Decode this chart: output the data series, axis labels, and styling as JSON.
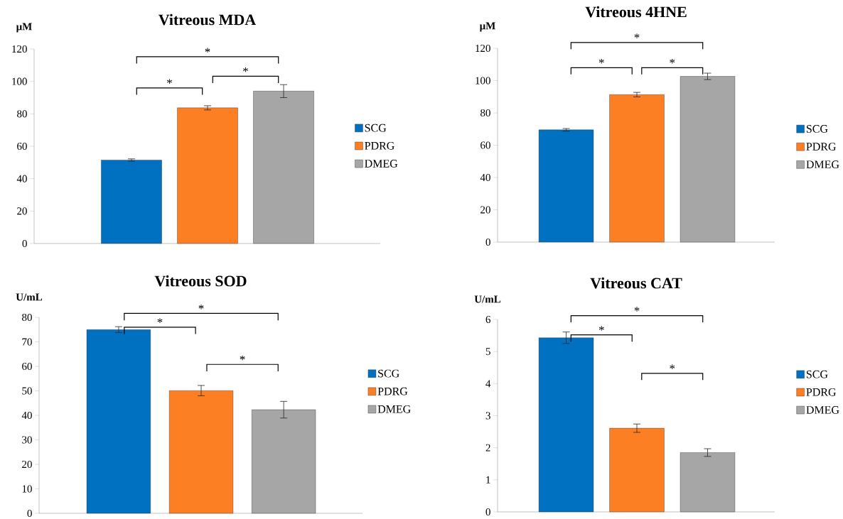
{
  "chart_data": [
    {
      "type": "bar",
      "title": "Vitreous MDA",
      "ylabel": "μM",
      "categories": [
        null
      ],
      "ylim": [
        0,
        120
      ],
      "yticks": [
        0,
        20,
        40,
        60,
        80,
        100,
        120
      ],
      "legend": "right",
      "annotations": [
        "*",
        "*",
        "*"
      ],
      "series": [
        {
          "name": "SCG",
          "color": "#0070c0",
          "values": [
            51.5
          ],
          "errors": [
            0.7
          ]
        },
        {
          "name": "PDRG",
          "color": "#fd7f23",
          "values": [
            83.7
          ],
          "errors": [
            1.3
          ]
        },
        {
          "name": "DMEG",
          "color": "#a6a6a6",
          "values": [
            94
          ],
          "errors": [
            4
          ]
        }
      ]
    },
    {
      "type": "bar",
      "title": "Vitreous 4HNE",
      "ylabel": "μM",
      "categories": [
        null
      ],
      "ylim": [
        0,
        120
      ],
      "yticks": [
        0,
        20,
        40,
        60,
        80,
        100,
        120
      ],
      "legend": "right",
      "annotations": [
        "*",
        "*",
        "*"
      ],
      "series": [
        {
          "name": "SCG",
          "color": "#0070c0",
          "values": [
            69.5
          ],
          "errors": [
            0.8
          ]
        },
        {
          "name": "PDRG",
          "color": "#fd7f23",
          "values": [
            91.3
          ],
          "errors": [
            1.4
          ]
        },
        {
          "name": "DMEG",
          "color": "#a6a6a6",
          "values": [
            102.6
          ],
          "errors": [
            2
          ]
        }
      ]
    },
    {
      "type": "bar",
      "title": "Vitreous SOD",
      "ylabel": "U/mL",
      "categories": [
        null
      ],
      "ylim": [
        0,
        80
      ],
      "yticks": [
        0,
        10,
        20,
        30,
        40,
        50,
        60,
        70,
        80
      ],
      "legend": "right",
      "annotations": [
        "*",
        "*",
        "*"
      ],
      "series": [
        {
          "name": "SCG",
          "color": "#0070c0",
          "values": [
            75
          ],
          "errors": [
            1.2
          ]
        },
        {
          "name": "PDRG",
          "color": "#fd7f23",
          "values": [
            50.1
          ],
          "errors": [
            2.1
          ]
        },
        {
          "name": "DMEG",
          "color": "#a6a6a6",
          "values": [
            42.3
          ],
          "errors": [
            3.4
          ]
        }
      ]
    },
    {
      "type": "bar",
      "title": "Vitreous CAT",
      "ylabel": "U/mL",
      "categories": [
        null
      ],
      "ylim": [
        0,
        6
      ],
      "yticks": [
        0,
        1,
        2,
        3,
        4,
        5,
        6
      ],
      "legend": "right",
      "annotations": [
        "*",
        "*",
        "*"
      ],
      "series": [
        {
          "name": "SCG",
          "color": "#0070c0",
          "values": [
            5.43
          ],
          "errors": [
            0.18
          ]
        },
        {
          "name": "PDRG",
          "color": "#fd7f23",
          "values": [
            2.61
          ],
          "errors": [
            0.13
          ]
        },
        {
          "name": "DMEG",
          "color": "#a6a6a6",
          "values": [
            1.85
          ],
          "errors": [
            0.12
          ]
        }
      ]
    }
  ]
}
